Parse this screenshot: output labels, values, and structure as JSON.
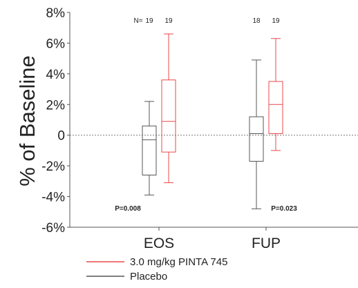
{
  "chart_data": {
    "type": "boxplot",
    "ylabel": "% of Baseline",
    "xlabel": "",
    "ylim": [
      -6,
      8
    ],
    "y_ticks": [
      {
        "value": 8,
        "label": "8%"
      },
      {
        "value": 6,
        "label": "6%"
      },
      {
        "value": 4,
        "label": "4%"
      },
      {
        "value": 2,
        "label": "2%"
      },
      {
        "value": 0,
        "label": "0"
      },
      {
        "value": -2,
        "label": "-2%"
      },
      {
        "value": -4,
        "label": "-4%"
      },
      {
        "value": -6,
        "label": "-6%"
      }
    ],
    "categories": [
      "EOS",
      "FUP"
    ],
    "reference_line": 0,
    "n_prefix": "N=",
    "series": [
      {
        "name": "3.0 mg/kg PINTA 745",
        "color": "#e8484a",
        "boxes": [
          {
            "category": "EOS",
            "min": -3.1,
            "q1": -1.1,
            "median": 0.9,
            "q3": 3.6,
            "max": 6.6,
            "n": "19"
          },
          {
            "category": "FUP",
            "min": -1.0,
            "q1": 0.1,
            "median": 2.0,
            "q3": 3.5,
            "max": 6.3,
            "n": "19"
          }
        ]
      },
      {
        "name": "Placebo",
        "color": "#555555",
        "boxes": [
          {
            "category": "EOS",
            "min": -3.9,
            "q1": -2.6,
            "median": -0.3,
            "q3": 0.6,
            "max": 2.2,
            "n": "19"
          },
          {
            "category": "FUP",
            "min": -4.8,
            "q1": -1.7,
            "median": 0.1,
            "q3": 1.2,
            "max": 4.9,
            "n": "18"
          }
        ]
      }
    ],
    "annotations": [
      {
        "category": "EOS",
        "text": "P=0.008"
      },
      {
        "category": "FUP",
        "text": "P=0.023"
      }
    ],
    "legend_position": "bottom"
  }
}
